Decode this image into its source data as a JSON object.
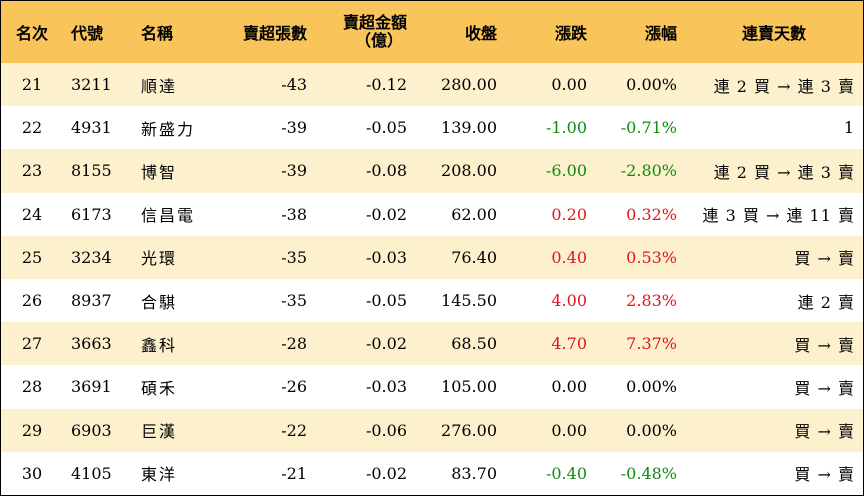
{
  "headers": {
    "rank": "名次",
    "code": "代號",
    "name": "名稱",
    "sell_lots": "賣超張數",
    "sell_amount_line1": "賣超金額",
    "sell_amount_line2": "（億）",
    "close": "收盤",
    "change": "漲跌",
    "pct": "漲幅",
    "streak": "連賣天數"
  },
  "colors": {
    "header_bg": "#f9c45a",
    "stripe_bg": "#fdf0cd",
    "up": "#e0161e",
    "down": "#108a10"
  },
  "rows": [
    {
      "rank": "21",
      "code": "3211",
      "name": "順達",
      "lots": "-43",
      "amount": "-0.12",
      "close": "280.00",
      "change": "0.00",
      "pct": "0.00%",
      "trend": "flat",
      "streak": "連 2 買 → 連 3 賣"
    },
    {
      "rank": "22",
      "code": "4931",
      "name": "新盛力",
      "lots": "-39",
      "amount": "-0.05",
      "close": "139.00",
      "change": "-1.00",
      "pct": "-0.71%",
      "trend": "down",
      "streak": "1"
    },
    {
      "rank": "23",
      "code": "8155",
      "name": "博智",
      "lots": "-39",
      "amount": "-0.08",
      "close": "208.00",
      "change": "-6.00",
      "pct": "-2.80%",
      "trend": "down",
      "streak": "連 2 買 → 連 3 賣"
    },
    {
      "rank": "24",
      "code": "6173",
      "name": "信昌電",
      "lots": "-38",
      "amount": "-0.02",
      "close": "62.00",
      "change": "0.20",
      "pct": "0.32%",
      "trend": "up",
      "streak": "連 3 買 → 連 11 賣"
    },
    {
      "rank": "25",
      "code": "3234",
      "name": "光環",
      "lots": "-35",
      "amount": "-0.03",
      "close": "76.40",
      "change": "0.40",
      "pct": "0.53%",
      "trend": "up",
      "streak": "買 → 賣"
    },
    {
      "rank": "26",
      "code": "8937",
      "name": "合騏",
      "lots": "-35",
      "amount": "-0.05",
      "close": "145.50",
      "change": "4.00",
      "pct": "2.83%",
      "trend": "up",
      "streak": "連 2 賣"
    },
    {
      "rank": "27",
      "code": "3663",
      "name": "鑫科",
      "lots": "-28",
      "amount": "-0.02",
      "close": "68.50",
      "change": "4.70",
      "pct": "7.37%",
      "trend": "up",
      "streak": "買 → 賣"
    },
    {
      "rank": "28",
      "code": "3691",
      "name": "碩禾",
      "lots": "-26",
      "amount": "-0.03",
      "close": "105.00",
      "change": "0.00",
      "pct": "0.00%",
      "trend": "flat",
      "streak": "買 → 賣"
    },
    {
      "rank": "29",
      "code": "6903",
      "name": "巨漢",
      "lots": "-22",
      "amount": "-0.06",
      "close": "276.00",
      "change": "0.00",
      "pct": "0.00%",
      "trend": "flat",
      "streak": "買 → 賣"
    },
    {
      "rank": "30",
      "code": "4105",
      "name": "東洋",
      "lots": "-21",
      "amount": "-0.02",
      "close": "83.70",
      "change": "-0.40",
      "pct": "-0.48%",
      "trend": "down",
      "streak": "買 → 賣"
    }
  ]
}
